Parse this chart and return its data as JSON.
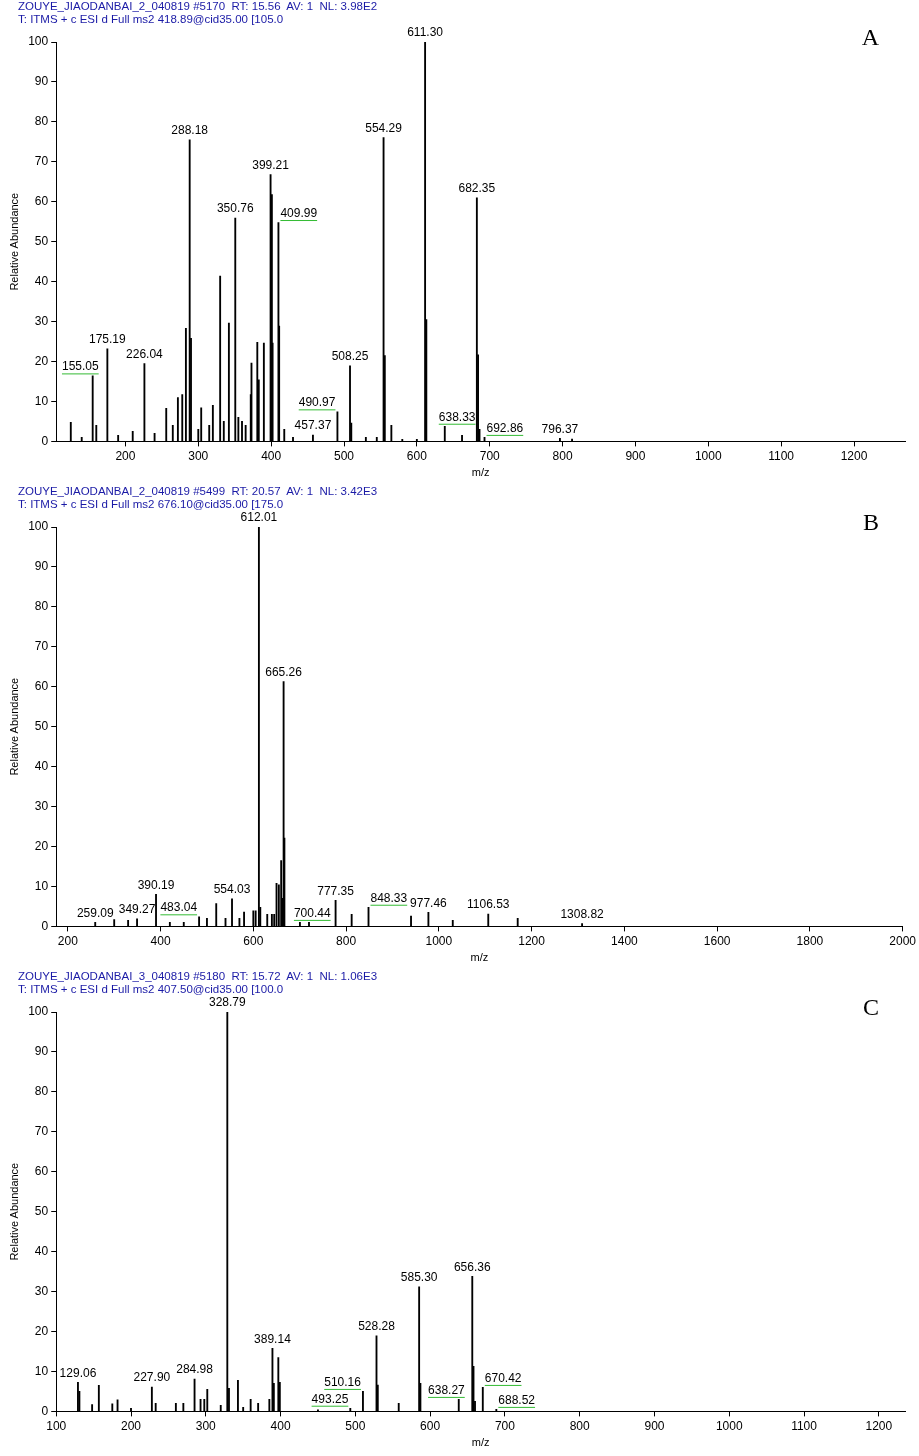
{
  "chart_data": [
    {
      "type": "bar",
      "title": "ZOUYE_JIAODANBAI_2_040819 #5170  RT: 15.56  AV: 1  NL: 3.98E2",
      "subtitle": "T: ITMS + c ESI d Full ms2 418.89@cid35.00 [105.0",
      "xlabel": "m/z",
      "ylabel": "Relative Abundance",
      "color": "#000000",
      "annotations": [
        "A",
        {
          "text": "155.05",
          "x": 155.05,
          "y": 16.4
        },
        {
          "text": "175.19",
          "x": 175.19,
          "y": 23.2
        },
        {
          "text": "226.04",
          "x": 226.04,
          "y": 19.5
        },
        {
          "text": "288.18",
          "x": 288.18,
          "y": 75.5
        },
        {
          "text": "350.76",
          "x": 350.76,
          "y": 55.9
        },
        {
          "text": "399.21",
          "x": 399.21,
          "y": 66.8
        },
        {
          "text": "409.99",
          "x": 409.99,
          "y": 54.8
        },
        {
          "text": "457.37",
          "x": 457.37,
          "y": 1.6
        },
        {
          "text": "490.97",
          "x": 490.97,
          "y": 7.4
        },
        {
          "text": "508.25",
          "x": 508.25,
          "y": 18.9
        },
        {
          "text": "554.29",
          "x": 554.29,
          "y": 76.1
        },
        {
          "text": "611.30",
          "x": 611.3,
          "y": 100
        },
        {
          "text": "638.33",
          "x": 638.33,
          "y": 3.8
        },
        {
          "text": "682.35",
          "x": 682.35,
          "y": 61
        },
        {
          "text": "692.86",
          "x": 692.86,
          "y": 1
        },
        {
          "text": "796.37",
          "x": 796.37,
          "y": 0.8
        }
      ],
      "xlim": [
        105,
        1270
      ],
      "xticks": [
        200,
        300,
        400,
        500,
        600,
        700,
        800,
        900,
        1000,
        1100,
        1200
      ],
      "ylim": [
        0,
        100
      ],
      "yticks": [
        0,
        10,
        20,
        30,
        40,
        50,
        60,
        70,
        80,
        90,
        100
      ],
      "x": [
        125,
        140,
        155.05,
        160,
        175.19,
        190,
        210,
        226.04,
        240,
        256,
        265,
        272,
        278,
        283,
        288.18,
        290,
        300,
        304,
        315,
        320,
        330,
        335,
        342,
        350.76,
        355,
        360,
        365,
        372,
        373,
        381,
        383,
        390,
        399.21,
        401,
        402,
        409.99,
        411,
        418,
        430,
        457.37,
        490.97,
        508.25,
        510,
        530,
        545,
        554.29,
        556,
        565,
        580,
        600,
        611.3,
        613,
        638.33,
        662,
        682.35,
        684,
        686,
        692.86,
        796.37,
        813
      ],
      "values": [
        4.8,
        1,
        16.4,
        4,
        23.2,
        1.5,
        2.5,
        19.5,
        2,
        8.3,
        4,
        11,
        11.7,
        28.3,
        75.5,
        25.8,
        3,
        8.4,
        4,
        9,
        41.4,
        5,
        29.6,
        55.9,
        6,
        5,
        4,
        11.7,
        19.6,
        24.8,
        15.4,
        24.6,
        66.8,
        61.8,
        24.6,
        54.8,
        28.9,
        3,
        1,
        1.6,
        7.4,
        18.9,
        4.6,
        1,
        1,
        76.1,
        21.5,
        4,
        0.5,
        0.5,
        100,
        30.5,
        3.8,
        1.5,
        61,
        21.7,
        3,
        1,
        0.8,
        0.6
      ]
    },
    {
      "type": "bar",
      "title": "ZOUYE_JIAODANBAI_2_040819 #5499  RT: 20.57  AV: 1  NL: 3.42E3",
      "subtitle": "T: ITMS + c ESI d Full ms2 676.10@cid35.00 [175.0",
      "xlabel": "m/z",
      "ylabel": "Relative Abundance",
      "color": "#000000",
      "annotations": [
        "B",
        {
          "text": "259.09",
          "x": 259.09,
          "y": 1
        },
        {
          "text": "349.27",
          "x": 349.27,
          "y": 1.9
        },
        {
          "text": "390.19",
          "x": 390.19,
          "y": 8
        },
        {
          "text": "483.04",
          "x": 483.04,
          "y": 2.4
        },
        {
          "text": "554.03",
          "x": 554.03,
          "y": 6.9
        },
        {
          "text": "612.01",
          "x": 612.01,
          "y": 100
        },
        {
          "text": "665.26",
          "x": 665.26,
          "y": 61.3
        },
        {
          "text": "700.44",
          "x": 700.44,
          "y": 1
        },
        {
          "text": "777.35",
          "x": 777.35,
          "y": 6.5
        },
        {
          "text": "848.33",
          "x": 848.33,
          "y": 4.8
        },
        {
          "text": "977.46",
          "x": 977.46,
          "y": 3.5
        },
        {
          "text": "1106.53",
          "x": 1106.53,
          "y": 3.1
        },
        {
          "text": "1308.82",
          "x": 1308.82,
          "y": 0.7
        }
      ],
      "xlim": [
        175,
        2000
      ],
      "xticks": [
        200,
        400,
        600,
        800,
        1000,
        1200,
        1400,
        1600,
        1800,
        2000
      ],
      "ylim": [
        0,
        100
      ],
      "yticks": [
        0,
        10,
        20,
        30,
        40,
        50,
        60,
        70,
        80,
        90,
        100
      ],
      "x": [
        259.09,
        300,
        330,
        349.27,
        390.19,
        420,
        450,
        483.04,
        500,
        520,
        540,
        554.03,
        570,
        580,
        600,
        605,
        612.01,
        615,
        630,
        640,
        645,
        650,
        655,
        660,
        662,
        665.26,
        667,
        700.44,
        720,
        777.35,
        812,
        848.33,
        940,
        977.46,
        1030,
        1106.53,
        1170,
        1308.82
      ],
      "values": [
        1,
        1.7,
        1.5,
        1.9,
        8,
        1,
        1,
        2.4,
        2,
        5.7,
        2,
        6.9,
        2,
        3.6,
        3.9,
        3.9,
        100,
        4.8,
        3,
        3,
        3,
        10.8,
        10.4,
        16.5,
        7,
        61.3,
        22.1,
        1,
        1,
        6.5,
        3,
        4.8,
        2.6,
        3.5,
        1.5,
        3.1,
        2,
        0.7
      ]
    },
    {
      "type": "bar",
      "title": "ZOUYE_JIAODANBAI_3_040819 #5180  RT: 15.72  AV: 1  NL: 1.06E3",
      "subtitle": "T: ITMS + c ESI d Full ms2 407.50@cid35.00 [100.0",
      "xlabel": "m/z",
      "ylabel": "Relative Abundance",
      "color": "#000000",
      "annotations": [
        "C",
        {
          "text": "129.06",
          "x": 129.06,
          "y": 7.3
        },
        {
          "text": "227.90",
          "x": 227.9,
          "y": 6.1
        },
        {
          "text": "284.98",
          "x": 284.98,
          "y": 8.1
        },
        {
          "text": "328.79",
          "x": 328.79,
          "y": 100
        },
        {
          "text": "389.14",
          "x": 389.14,
          "y": 15.8
        },
        {
          "text": "493.25",
          "x": 493.25,
          "y": 0.8
        },
        {
          "text": "510.16",
          "x": 510.16,
          "y": 5
        },
        {
          "text": "528.28",
          "x": 528.28,
          "y": 18.9
        },
        {
          "text": "585.30",
          "x": 585.3,
          "y": 31.2
        },
        {
          "text": "638.27",
          "x": 638.27,
          "y": 3
        },
        {
          "text": "656.36",
          "x": 656.36,
          "y": 33.8
        },
        {
          "text": "670.42",
          "x": 670.42,
          "y": 6
        },
        {
          "text": "688.52",
          "x": 688.52,
          "y": 0.5
        }
      ],
      "xlim": [
        100,
        1235
      ],
      "xticks": [
        100,
        200,
        300,
        400,
        500,
        600,
        700,
        800,
        900,
        1000,
        1100,
        1200
      ],
      "ylim": [
        0,
        100
      ],
      "yticks": [
        0,
        10,
        20,
        30,
        40,
        50,
        60,
        70,
        80,
        90,
        100
      ],
      "x": [
        129.06,
        131,
        148,
        157,
        175,
        182,
        200,
        227.9,
        233,
        260,
        270,
        284.98,
        293,
        298,
        302,
        320,
        328.79,
        331,
        343,
        350,
        360,
        370,
        385,
        389.14,
        391,
        397,
        399,
        450,
        493.25,
        510.16,
        528.28,
        530,
        558,
        585.3,
        587,
        638.27,
        656.36,
        658,
        660,
        670.42,
        688.52
      ],
      "values": [
        7.3,
        5,
        1.7,
        6.5,
        1.9,
        2.9,
        0.8,
        6.1,
        2,
        2,
        2,
        8.1,
        3,
        3,
        5.5,
        1.5,
        100,
        5.8,
        7.8,
        1,
        3,
        2,
        3,
        15.8,
        7,
        13.5,
        7.3,
        0.4,
        0.8,
        5,
        18.9,
        6.6,
        2,
        31.2,
        7,
        3,
        33.8,
        11.3,
        2.5,
        6,
        0.5
      ]
    }
  ]
}
